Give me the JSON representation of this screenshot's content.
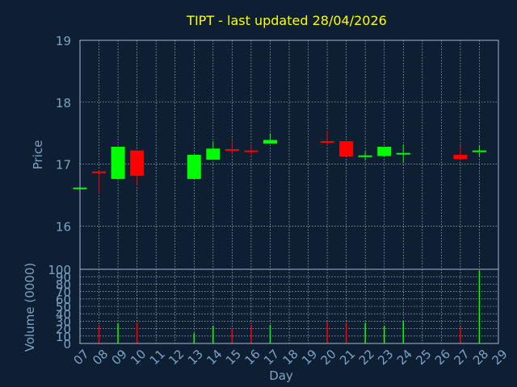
{
  "title": "TIPT - last updated 28/04/2026",
  "colors": {
    "background": "#0f1f33",
    "title": "#ffff00",
    "axis_text": "#7ba3c4",
    "frame": "#9fb8d0",
    "grid": "#c8d4e0",
    "up": "#00ff00",
    "down": "#ff0000"
  },
  "chart_data": [
    {
      "type": "candlestick",
      "ylabel": "Price",
      "ylim": [
        15.3,
        19
      ],
      "yticks": [
        16,
        17,
        18,
        19
      ],
      "days": [
        "07",
        "08",
        "09",
        "10",
        "11",
        "12",
        "13",
        "14",
        "15",
        "16",
        "17",
        "18",
        "19",
        "20",
        "21",
        "22",
        "23",
        "24",
        "25",
        "26",
        "27",
        "28",
        "29"
      ],
      "candles": [
        {
          "day": "07",
          "open": 16.6,
          "high": 16.62,
          "low": 16.58,
          "close": 16.62
        },
        {
          "day": "08",
          "open": 16.88,
          "high": 16.9,
          "low": 16.52,
          "close": 16.87
        },
        {
          "day": "09",
          "open": 16.76,
          "high": 17.28,
          "low": 16.74,
          "close": 17.28
        },
        {
          "day": "10",
          "open": 17.22,
          "high": 17.22,
          "low": 16.66,
          "close": 16.81
        },
        {
          "day": "13",
          "open": 16.76,
          "high": 17.15,
          "low": 16.75,
          "close": 17.15
        },
        {
          "day": "14",
          "open": 17.07,
          "high": 17.37,
          "low": 17.07,
          "close": 17.25
        },
        {
          "day": "15",
          "open": 17.24,
          "high": 17.37,
          "low": 17.16,
          "close": 17.22
        },
        {
          "day": "16",
          "open": 17.22,
          "high": 17.32,
          "low": 17.12,
          "close": 17.2
        },
        {
          "day": "17",
          "open": 17.33,
          "high": 17.5,
          "low": 17.33,
          "close": 17.39
        },
        {
          "day": "20",
          "open": 17.37,
          "high": 17.54,
          "low": 17.3,
          "close": 17.35
        },
        {
          "day": "21",
          "open": 17.37,
          "high": 17.37,
          "low": 17.12,
          "close": 17.12
        },
        {
          "day": "22",
          "open": 17.12,
          "high": 17.2,
          "low": 17.06,
          "close": 17.14
        },
        {
          "day": "23",
          "open": 17.13,
          "high": 17.28,
          "low": 17.12,
          "close": 17.28
        },
        {
          "day": "24",
          "open": 17.17,
          "high": 17.32,
          "low": 17.02,
          "close": 17.18
        },
        {
          "day": "27",
          "open": 17.15,
          "high": 17.3,
          "low": 17.08,
          "close": 17.08
        },
        {
          "day": "28",
          "open": 17.2,
          "high": 17.3,
          "low": 17.13,
          "close": 17.22
        }
      ]
    },
    {
      "type": "bar",
      "ylabel": "Volume (0000)",
      "xlabel": "Day",
      "ylim": [
        0,
        100
      ],
      "yticks": [
        0,
        10,
        20,
        30,
        40,
        50,
        60,
        70,
        80,
        90,
        100
      ],
      "bars": [
        {
          "day": "07",
          "value": 1,
          "up": true
        },
        {
          "day": "08",
          "value": 25,
          "up": false
        },
        {
          "day": "09",
          "value": 27,
          "up": true
        },
        {
          "day": "10",
          "value": 28,
          "up": false
        },
        {
          "day": "13",
          "value": 14,
          "up": true
        },
        {
          "day": "14",
          "value": 24,
          "up": true
        },
        {
          "day": "15",
          "value": 20,
          "up": false
        },
        {
          "day": "16",
          "value": 25,
          "up": false
        },
        {
          "day": "17",
          "value": 25,
          "up": true
        },
        {
          "day": "20",
          "value": 29,
          "up": false
        },
        {
          "day": "21",
          "value": 28,
          "up": false
        },
        {
          "day": "22",
          "value": 28,
          "up": true
        },
        {
          "day": "23",
          "value": 24,
          "up": true
        },
        {
          "day": "24",
          "value": 30,
          "up": true
        },
        {
          "day": "27",
          "value": 22,
          "up": false
        },
        {
          "day": "28",
          "value": 98,
          "up": true
        }
      ]
    }
  ]
}
